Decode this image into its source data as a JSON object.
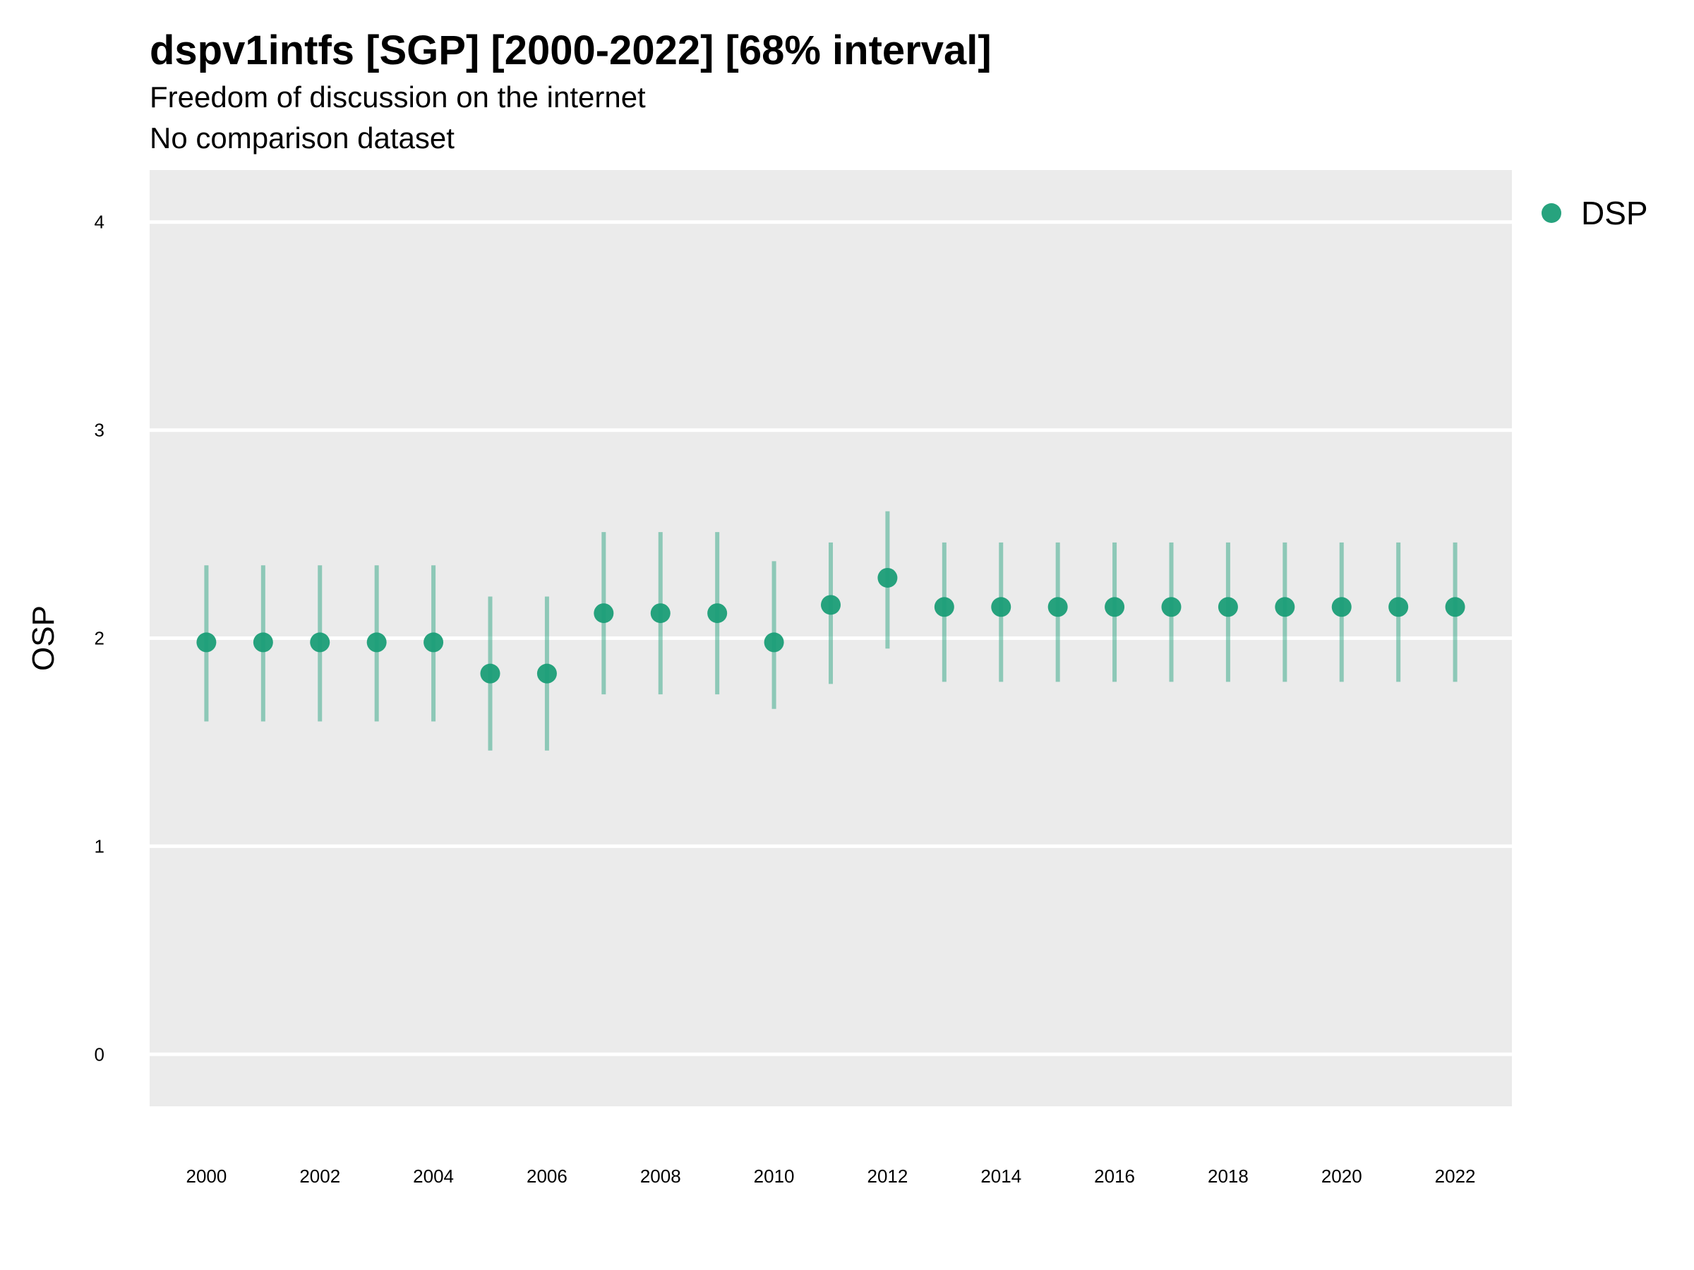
{
  "title": "dspv1intfs [SGP] [2000-2022] [68% interval]",
  "subtitle": "Freedom of discussion on the internet",
  "subtitle2": "No comparison dataset",
  "chart_data": {
    "type": "scatter",
    "ylabel": "OSP",
    "xlabel": "",
    "ylim": [
      -0.25,
      4.25
    ],
    "yticks": [
      0,
      1,
      2,
      3,
      4
    ],
    "xlim": [
      1999,
      2023
    ],
    "xticks": [
      2000,
      2002,
      2004,
      2006,
      2008,
      2010,
      2012,
      2014,
      2016,
      2018,
      2020,
      2022
    ],
    "grid": true,
    "legend_position": "right",
    "series": [
      {
        "name": "DSP",
        "color": "#1b9e77",
        "x": [
          2000,
          2001,
          2002,
          2003,
          2004,
          2005,
          2006,
          2007,
          2008,
          2009,
          2010,
          2011,
          2012,
          2013,
          2014,
          2015,
          2016,
          2017,
          2018,
          2019,
          2020,
          2021,
          2022
        ],
        "y": [
          1.98,
          1.98,
          1.98,
          1.98,
          1.98,
          1.83,
          1.83,
          2.12,
          2.12,
          2.12,
          1.98,
          2.16,
          2.29,
          2.15,
          2.15,
          2.15,
          2.15,
          2.15,
          2.15,
          2.15,
          2.15,
          2.15,
          2.15
        ],
        "lower": [
          1.6,
          1.6,
          1.6,
          1.6,
          1.6,
          1.46,
          1.46,
          1.73,
          1.73,
          1.73,
          1.66,
          1.78,
          1.95,
          1.79,
          1.79,
          1.79,
          1.79,
          1.79,
          1.79,
          1.79,
          1.79,
          1.79,
          1.79
        ],
        "upper": [
          2.35,
          2.35,
          2.35,
          2.35,
          2.35,
          2.2,
          2.2,
          2.51,
          2.51,
          2.51,
          2.37,
          2.46,
          2.61,
          2.46,
          2.46,
          2.46,
          2.46,
          2.46,
          2.46,
          2.46,
          2.46,
          2.46,
          2.46
        ]
      }
    ]
  }
}
